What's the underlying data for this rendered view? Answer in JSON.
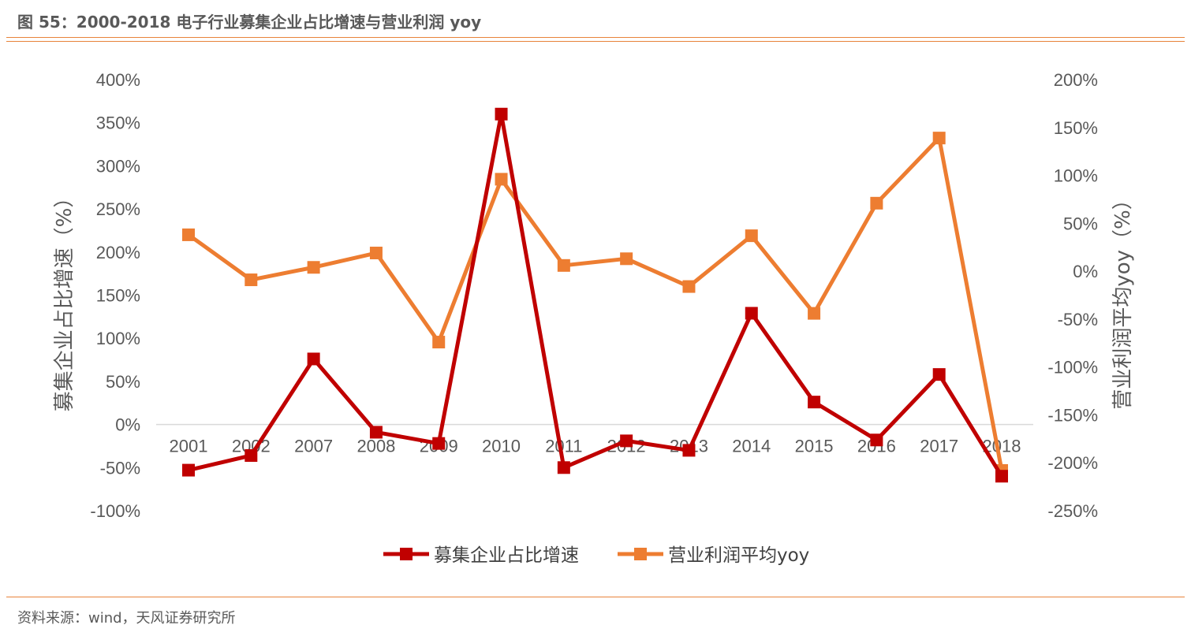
{
  "header": {
    "title": "图 55：2000-2018 电子行业募集企业占比增速与营业利润 yoy"
  },
  "footer": {
    "source": "资料来源：wind，天风证券研究所"
  },
  "colors": {
    "series1": "#c00000",
    "series2": "#ed7d31",
    "rule": "#e8833a"
  },
  "chart_data": {
    "type": "line",
    "categories": [
      "2001",
      "2002",
      "2007",
      "2008",
      "2009",
      "2010",
      "2011",
      "2012",
      "2013",
      "2014",
      "2015",
      "2016",
      "2017",
      "2018"
    ],
    "series": [
      {
        "name": "募集企业占比增速",
        "axis": "left",
        "values": [
          -53,
          -36,
          76,
          -9,
          -22,
          360,
          -50,
          -19,
          -30,
          129,
          26,
          -18,
          58,
          -60
        ]
      },
      {
        "name": "营业利润平均yoy",
        "axis": "right",
        "values": [
          38,
          -9,
          4,
          19,
          -74,
          96,
          6,
          13,
          -16,
          37,
          -44,
          71,
          139,
          -208
        ]
      }
    ],
    "ylabel_left": "募集企业占比增速（%）",
    "ylabel_right": "营业利润平均yoy（%）",
    "ylim_left": [
      -100,
      400
    ],
    "ylim_right": [
      -250,
      200
    ],
    "yticks_left": [
      "400%",
      "350%",
      "300%",
      "250%",
      "200%",
      "150%",
      "100%",
      "50%",
      "0%",
      "-50%",
      "-100%"
    ],
    "yticks_right": [
      "200%",
      "150%",
      "100%",
      "50%",
      "0%",
      "-50%",
      "-100%",
      "-150%",
      "-200%",
      "-250%"
    ],
    "legend_position": "bottom",
    "grid": false
  }
}
